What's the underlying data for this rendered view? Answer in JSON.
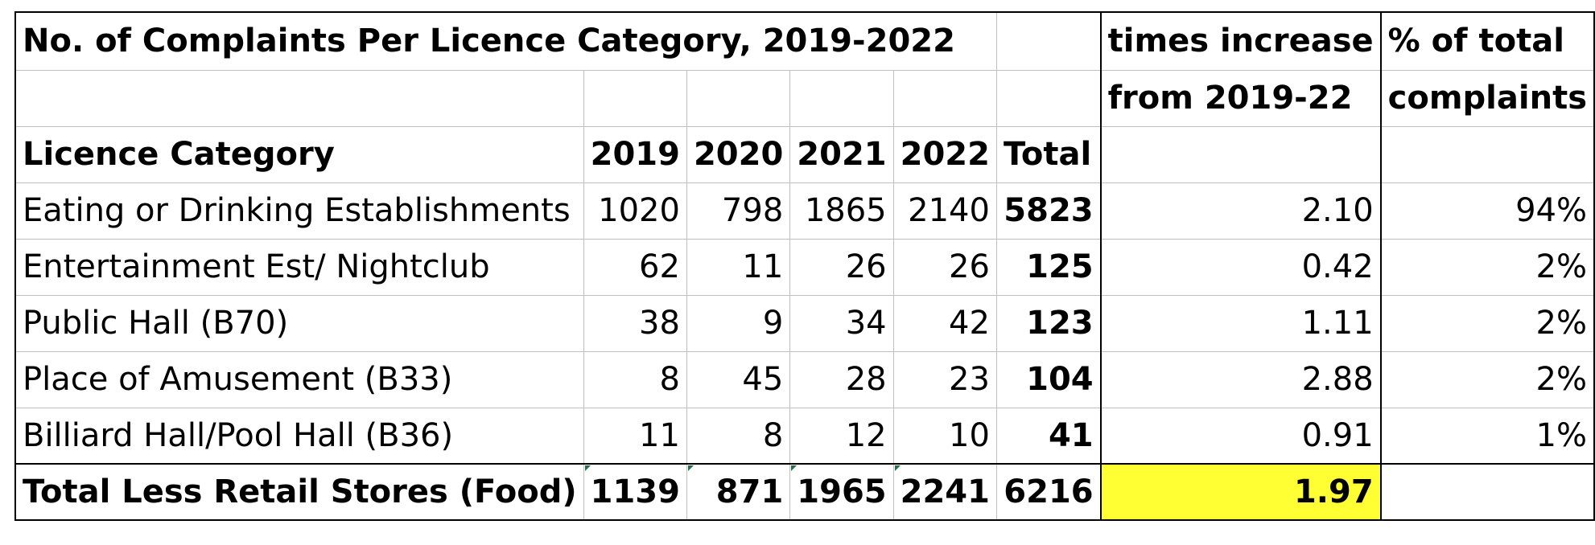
{
  "title": "No. of Complaints Per Licence Category, 2019-2022",
  "header": {
    "times_increase_line1": "times increase",
    "times_increase_line2": "from 2019-22",
    "pct_line1": "% of total",
    "pct_line2": "complaints",
    "category": "Licence Category",
    "y2019": "2019",
    "y2020": "2020",
    "y2021": "2021",
    "y2022": "2022",
    "total": "Total"
  },
  "rows": [
    {
      "category": "Eating or Drinking Establishments",
      "y2019": "1020",
      "y2020": "798",
      "y2021": "1865",
      "y2022": "2140",
      "total": "5823",
      "increase": "2.10",
      "pct": "94%"
    },
    {
      "category": "Entertainment Est/ Nightclub",
      "y2019": "62",
      "y2020": "11",
      "y2021": "26",
      "y2022": "26",
      "total": "125",
      "increase": "0.42",
      "pct": "2%"
    },
    {
      "category": "Public Hall (B70)",
      "y2019": "38",
      "y2020": "9",
      "y2021": "34",
      "y2022": "42",
      "total": "123",
      "increase": "1.11",
      "pct": "2%"
    },
    {
      "category": "Place of Amusement (B33)",
      "y2019": "8",
      "y2020": "45",
      "y2021": "28",
      "y2022": "23",
      "total": "104",
      "increase": "2.88",
      "pct": "2%"
    },
    {
      "category": "Billiard Hall/Pool Hall (B36)",
      "y2019": "11",
      "y2020": "8",
      "y2021": "12",
      "y2022": "10",
      "total": "41",
      "increase": "0.91",
      "pct": "1%"
    }
  ],
  "totals": {
    "category": "Total Less Retail Stores (Food)",
    "y2019": "1139",
    "y2020": "871",
    "y2021": "1965",
    "y2022": "2241",
    "total": "6216",
    "increase": "1.97",
    "pct": ""
  },
  "colors": {
    "highlight": "#ffff33",
    "grid": "#bfbfbf",
    "border": "#000000"
  }
}
